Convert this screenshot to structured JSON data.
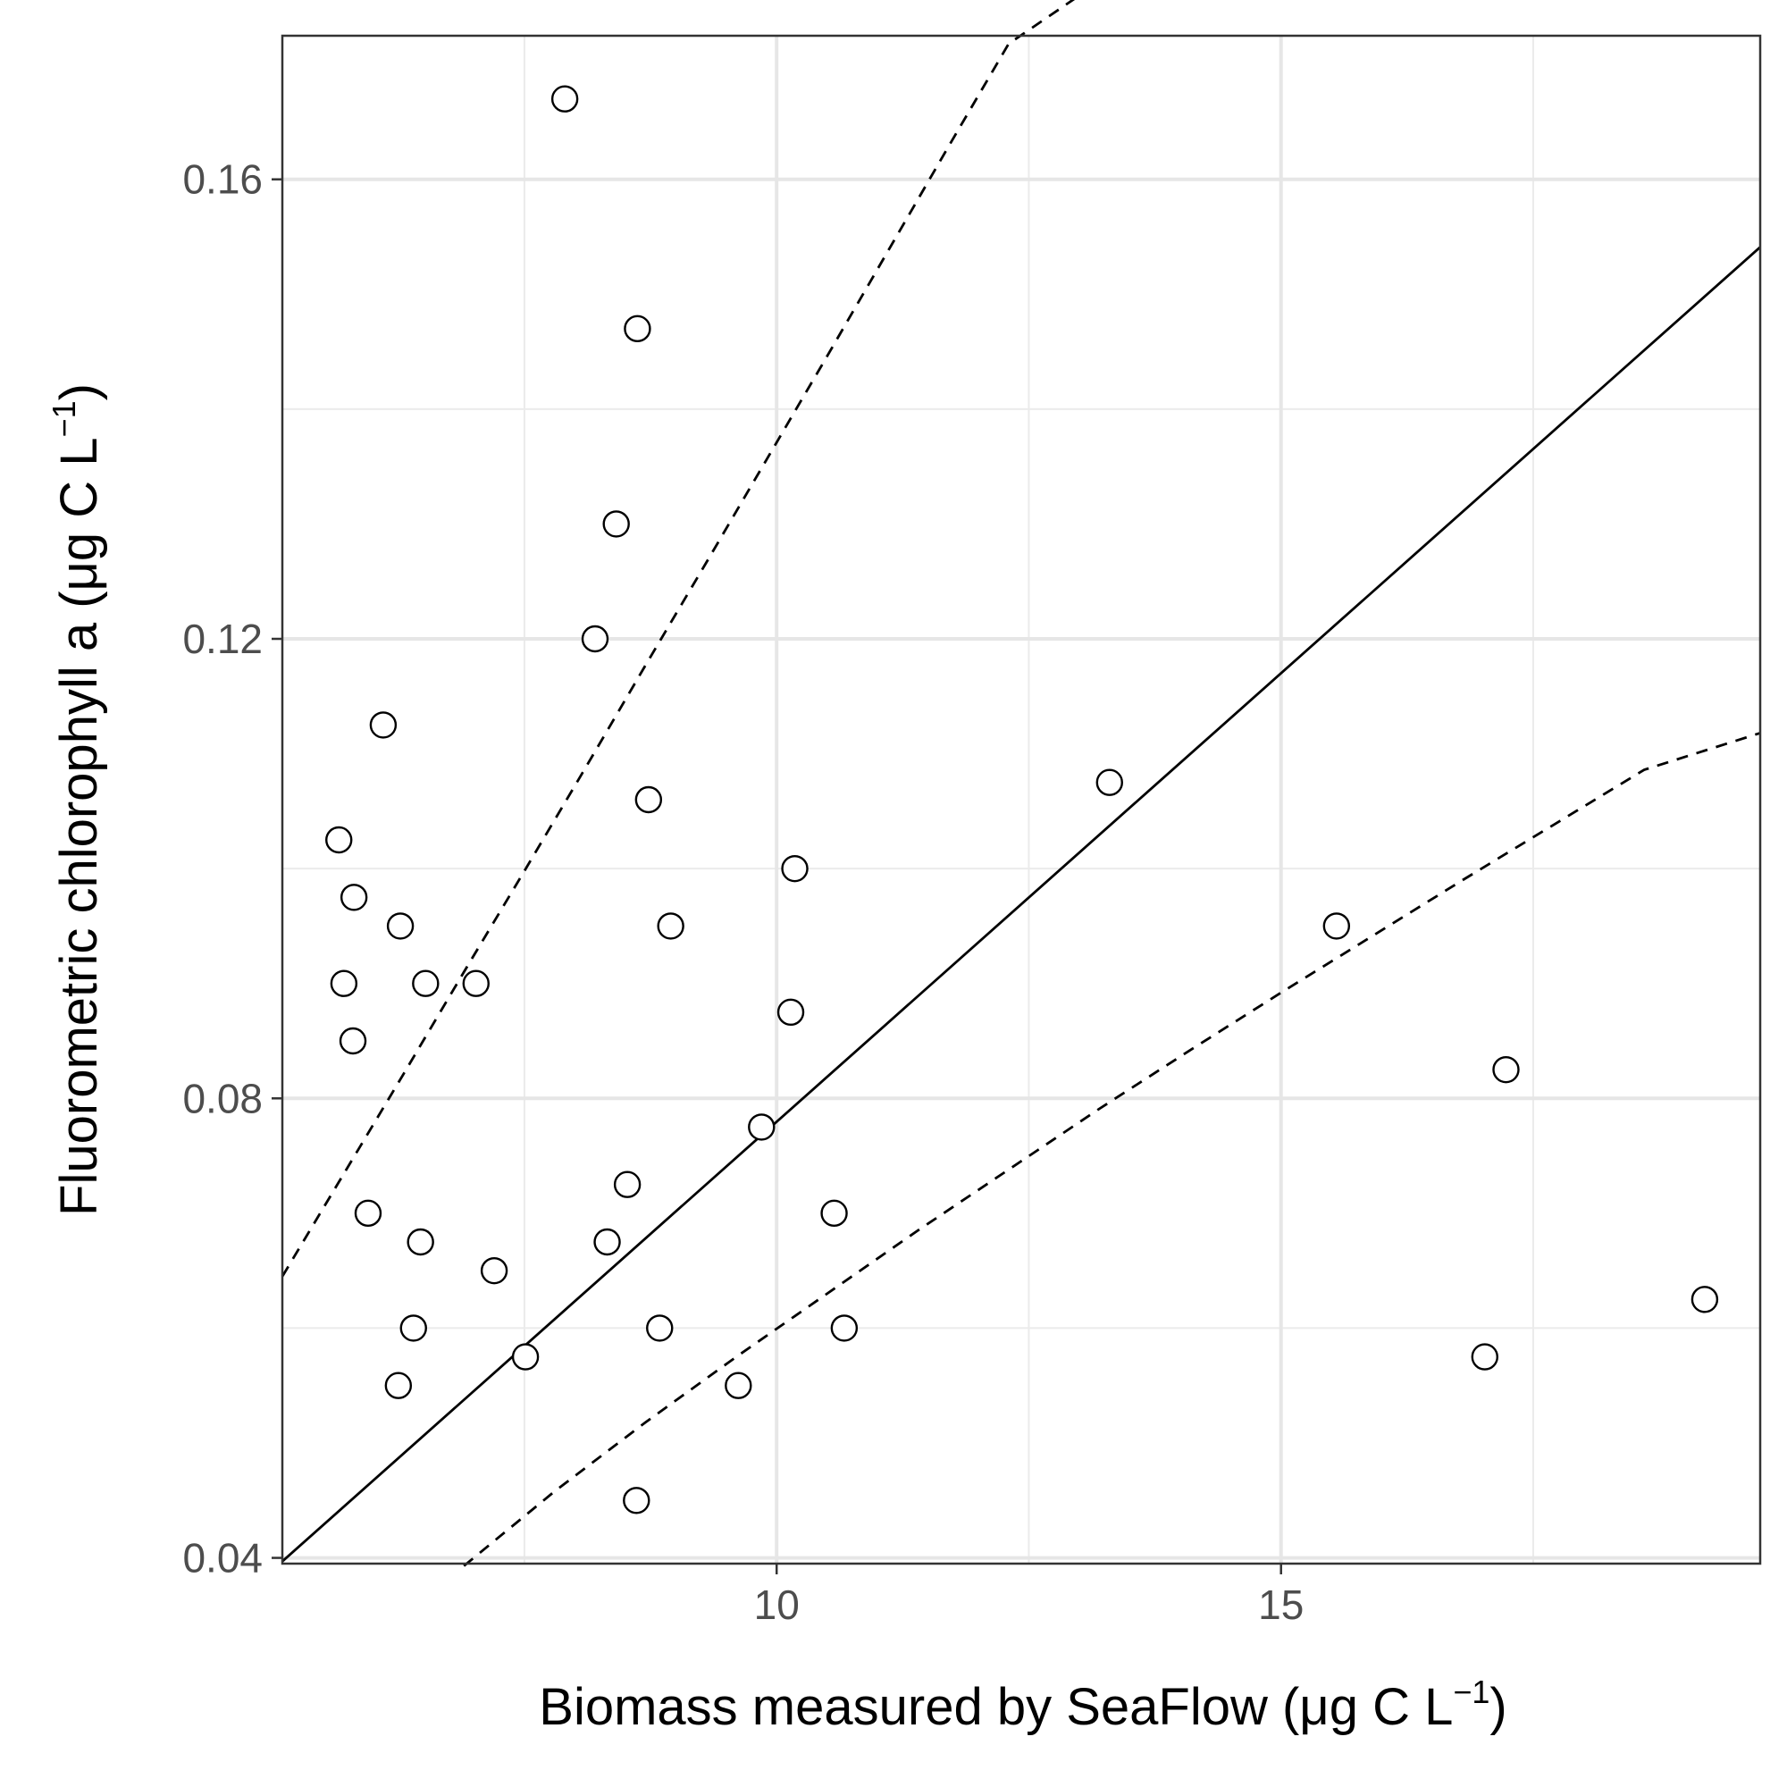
{
  "chart_data": {
    "type": "scatter",
    "xlabel": {
      "main": "Biomass measured by SeaFlow (μg C L",
      "sup": "−1",
      "end": ")"
    },
    "ylabel": {
      "main": "Fluorometric chlorophyll a (μg C L",
      "sup": "−1",
      "end": ")"
    },
    "xlim": [
      5.1,
      19.75
    ],
    "ylim": [
      0.0395,
      0.1725
    ],
    "x_ticks": [
      10,
      15
    ],
    "x_tick_labels": [
      "10",
      "15"
    ],
    "x_minor_ticks": [
      7.5,
      12.5,
      17.5
    ],
    "y_ticks": [
      0.04,
      0.08,
      0.12,
      0.16
    ],
    "y_tick_labels": [
      "0.04",
      "0.08",
      "0.12",
      "0.16"
    ],
    "y_minor_ticks": [
      0.06,
      0.1,
      0.14
    ],
    "grid": true,
    "points": [
      {
        "x": 7.9,
        "y": 0.167
      },
      {
        "x": 8.62,
        "y": 0.147
      },
      {
        "x": 8.41,
        "y": 0.13
      },
      {
        "x": 8.2,
        "y": 0.12
      },
      {
        "x": 6.1,
        "y": 0.1125
      },
      {
        "x": 8.73,
        "y": 0.106
      },
      {
        "x": 13.3,
        "y": 0.1075
      },
      {
        "x": 5.66,
        "y": 0.1025
      },
      {
        "x": 10.18,
        "y": 0.1
      },
      {
        "x": 5.81,
        "y": 0.0975
      },
      {
        "x": 6.27,
        "y": 0.095
      },
      {
        "x": 8.95,
        "y": 0.095
      },
      {
        "x": 15.55,
        "y": 0.095
      },
      {
        "x": 5.71,
        "y": 0.09
      },
      {
        "x": 6.52,
        "y": 0.09
      },
      {
        "x": 7.02,
        "y": 0.09
      },
      {
        "x": 5.8,
        "y": 0.085
      },
      {
        "x": 10.14,
        "y": 0.0875
      },
      {
        "x": 17.23,
        "y": 0.0825
      },
      {
        "x": 9.85,
        "y": 0.0775
      },
      {
        "x": 8.52,
        "y": 0.0725
      },
      {
        "x": 5.95,
        "y": 0.07
      },
      {
        "x": 10.57,
        "y": 0.07
      },
      {
        "x": 6.47,
        "y": 0.0675
      },
      {
        "x": 8.32,
        "y": 0.0675
      },
      {
        "x": 7.2,
        "y": 0.065
      },
      {
        "x": 6.4,
        "y": 0.06
      },
      {
        "x": 8.84,
        "y": 0.06
      },
      {
        "x": 10.67,
        "y": 0.06
      },
      {
        "x": 19.2,
        "y": 0.0625
      },
      {
        "x": 7.51,
        "y": 0.0575
      },
      {
        "x": 17.02,
        "y": 0.0575
      },
      {
        "x": 6.25,
        "y": 0.055
      },
      {
        "x": 9.62,
        "y": 0.055
      },
      {
        "x": 8.61,
        "y": 0.045
      }
    ],
    "lines": [
      {
        "style": "solid",
        "points": [
          [
            5.1,
            0.0397
          ],
          [
            19.75,
            0.1541
          ]
        ]
      },
      {
        "style": "dashed",
        "points": [
          [
            5.1,
            0.0645
          ],
          [
            5.7,
            0.0733
          ],
          [
            6.3,
            0.0821
          ],
          [
            6.9,
            0.091
          ],
          [
            7.5,
            0.0998
          ],
          [
            8.1,
            0.1087
          ],
          [
            8.7,
            0.1177
          ],
          [
            9.3,
            0.1266
          ],
          [
            9.9,
            0.1356
          ],
          [
            10.5,
            0.1446
          ],
          [
            11.1,
            0.1537
          ],
          [
            11.7,
            0.1628
          ],
          [
            12.3,
            0.1718
          ],
          [
            13.8,
            0.1808
          ]
        ]
      },
      {
        "style": "dashed",
        "points": [
          [
            6.9,
            0.0393
          ],
          [
            7.8,
            0.0458
          ],
          [
            8.7,
            0.0518
          ],
          [
            9.6,
            0.0575
          ],
          [
            10.5,
            0.063
          ],
          [
            11.4,
            0.0685
          ],
          [
            12.3,
            0.0738
          ],
          [
            13.2,
            0.0791
          ],
          [
            14.1,
            0.0842
          ],
          [
            15.0,
            0.0892
          ],
          [
            15.9,
            0.0941
          ],
          [
            16.8,
            0.099
          ],
          [
            17.7,
            0.1038
          ],
          [
            18.6,
            0.1086
          ],
          [
            19.75,
            0.1118
          ]
        ]
      }
    ]
  }
}
